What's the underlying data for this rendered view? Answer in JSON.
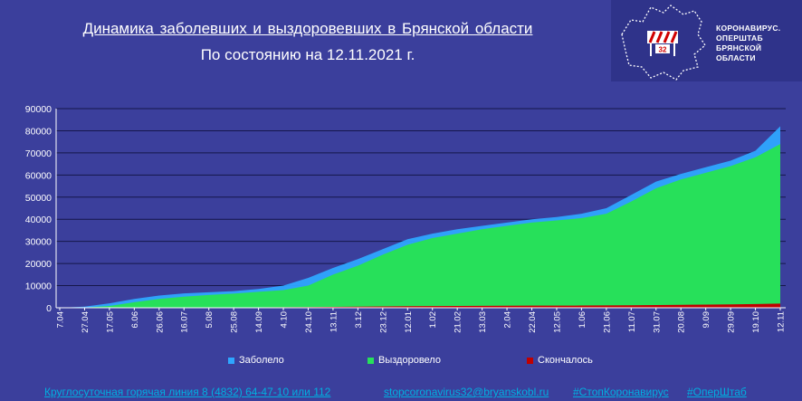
{
  "title": "Динамика  заболевших  и  выздоровевших  в  Брянской  области",
  "subtitle": "По состоянию на 12.11.2021 г.",
  "logo": {
    "line1": "КОРОНАВИРУС.",
    "line2": "ОПЕРШТАБ",
    "line3": "БРЯНСКОЙ ОБЛАСТИ",
    "badge": "32",
    "icon": "bryansk-region-map-icon"
  },
  "legend": {
    "cases": "Заболело",
    "recovered": "Выздоровело",
    "deaths": "Скончалось"
  },
  "footer": {
    "hotline": "Круглосуточная  горячая  линия  8  (4832)  64-47-10  или  112",
    "email": "stopcoronavirus32@bryanskobl.ru",
    "tag1": "#СтопКоронавирус",
    "tag2": "#ОперШтаб"
  },
  "colors": {
    "background": "#3b3f9c",
    "cases": "#2ea6ff",
    "recovered": "#27e05a",
    "deaths": "#c00000"
  },
  "chart_data": {
    "type": "area",
    "title": "Динамика  заболевших  и  выздоровевших  в  Брянской  области",
    "xlabel": "",
    "ylabel": "",
    "ylim": [
      0,
      90000
    ],
    "yticks": [
      0,
      10000,
      20000,
      30000,
      40000,
      50000,
      60000,
      70000,
      80000,
      90000
    ],
    "grid": true,
    "legend_position": "bottom",
    "x": [
      "7.04",
      "27.04",
      "17.05",
      "6.06",
      "26.06",
      "16.07",
      "5.08",
      "25.08",
      "14.09",
      "4.10",
      "24.10",
      "13.11",
      "3.12",
      "23.12",
      "12.01",
      "1.02",
      "21.02",
      "13.03",
      "2.04",
      "22.04",
      "12.05",
      "1.06",
      "21.06",
      "11.07",
      "31.07",
      "20.08",
      "9.09",
      "29.09",
      "19.10",
      "12.11"
    ],
    "series": [
      {
        "name": "Заболело",
        "values": [
          10,
          500,
          2000,
          4000,
          5500,
          6500,
          7000,
          7500,
          8500,
          10000,
          13500,
          18000,
          22000,
          26500,
          31000,
          33500,
          35500,
          37000,
          38500,
          40000,
          41000,
          42500,
          45000,
          51000,
          57000,
          60500,
          63500,
          66500,
          71000,
          82000
        ]
      },
      {
        "name": "Выздоровело",
        "values": [
          0,
          80,
          800,
          2500,
          4000,
          5000,
          5800,
          6400,
          7200,
          8000,
          10000,
          15000,
          19000,
          24000,
          28500,
          31500,
          33500,
          35500,
          37000,
          38500,
          39500,
          40500,
          42500,
          48000,
          54000,
          58000,
          61000,
          64000,
          68000,
          74000
        ]
      },
      {
        "name": "Скончалось",
        "values": [
          0,
          5,
          30,
          80,
          120,
          150,
          180,
          200,
          230,
          260,
          300,
          400,
          500,
          600,
          700,
          760,
          820,
          870,
          910,
          950,
          980,
          1000,
          1050,
          1150,
          1250,
          1350,
          1450,
          1550,
          1700,
          1900
        ]
      }
    ]
  }
}
